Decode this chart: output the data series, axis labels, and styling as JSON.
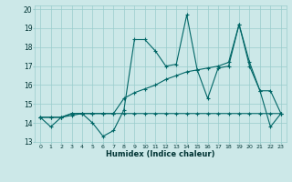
{
  "xlabel": "Humidex (Indice chaleur)",
  "bg_color": "#cce8e8",
  "grid_color": "#99cccc",
  "line_color": "#006666",
  "xlim": [
    -0.5,
    23.5
  ],
  "ylim": [
    13,
    20.2
  ],
  "yticks": [
    13,
    14,
    15,
    16,
    17,
    18,
    19,
    20
  ],
  "xticks": [
    0,
    1,
    2,
    3,
    4,
    5,
    6,
    7,
    8,
    9,
    10,
    11,
    12,
    13,
    14,
    15,
    16,
    17,
    18,
    19,
    20,
    21,
    22,
    23
  ],
  "series": [
    [
      14.3,
      13.8,
      14.3,
      14.4,
      14.5,
      14.0,
      13.3,
      13.6,
      14.7,
      18.4,
      18.4,
      17.8,
      17.0,
      17.1,
      19.7,
      16.8,
      15.3,
      16.9,
      17.0,
      19.2,
      17.0,
      15.7,
      13.8,
      14.5
    ],
    [
      14.3,
      14.3,
      14.3,
      14.5,
      14.5,
      14.5,
      14.5,
      14.5,
      15.3,
      15.6,
      15.8,
      16.0,
      16.3,
      16.5,
      16.7,
      16.8,
      16.9,
      17.0,
      17.2,
      19.2,
      17.2,
      15.7,
      15.7,
      14.5
    ],
    [
      14.3,
      14.3,
      14.3,
      14.5,
      14.5,
      14.5,
      14.5,
      14.5,
      14.5,
      14.5,
      14.5,
      14.5,
      14.5,
      14.5,
      14.5,
      14.5,
      14.5,
      14.5,
      14.5,
      14.5,
      14.5,
      14.5,
      14.5,
      14.5
    ]
  ]
}
